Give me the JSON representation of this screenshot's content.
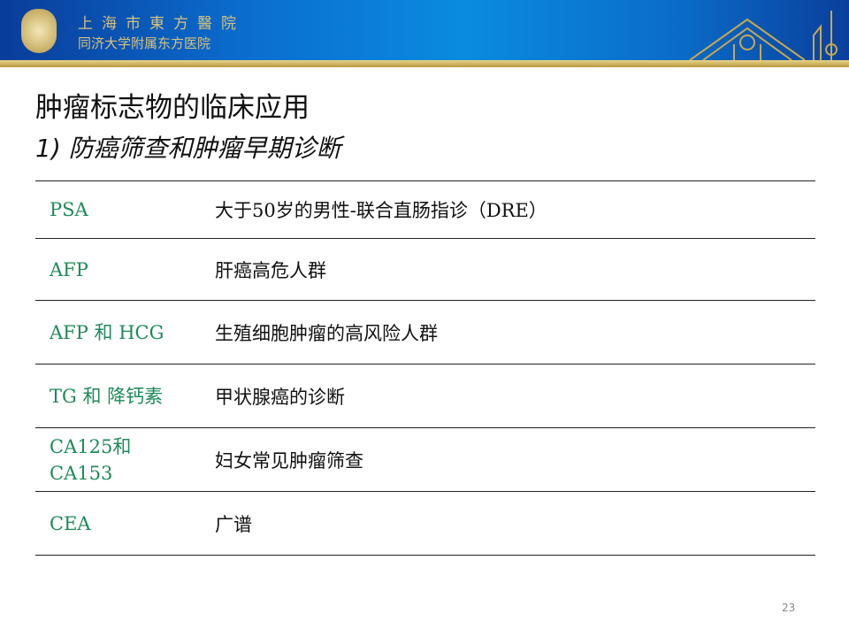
{
  "header": {
    "hospital_name_cn": "上海市東方醫院",
    "hospital_affiliation": "同济大学附属东方医院"
  },
  "slide": {
    "title": "肿瘤标志物的临床应用",
    "subtitle": "1) 防癌筛查和肿瘤早期诊断",
    "rows": [
      {
        "marker": "PSA",
        "use": "大于50岁的男性-联合直肠指诊（DRE）"
      },
      {
        "marker": "AFP",
        "use": "肝癌高危人群"
      },
      {
        "marker": "AFP 和 HCG",
        "use": "生殖细胞肿瘤的高风险人群"
      },
      {
        "marker": "TG 和 降钙素",
        "use": "甲状腺癌的诊断"
      },
      {
        "marker": "CA125和 CA153",
        "use": "妇女常见肿瘤筛查"
      },
      {
        "marker": "CEA",
        "use": "广谱"
      }
    ],
    "page_number": "23"
  },
  "colors": {
    "marker_text": "#1f8a5a",
    "banner": "#0a6fd0",
    "gold": "#c8a84e"
  }
}
